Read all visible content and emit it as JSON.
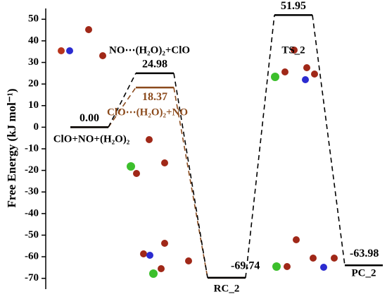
{
  "chart_data": {
    "type": "energy",
    "ylabel": "Free Energy (kJ mol⁻¹)",
    "ylim": [
      -75,
      55
    ],
    "yticks": [
      50,
      40,
      30,
      20,
      10,
      0,
      -10,
      -20,
      -30,
      -40,
      -50,
      -60,
      -70
    ],
    "categories": [
      "ClO+NO+(H₂O)₂",
      null,
      "RC_2",
      "TS_2",
      "PC_2"
    ],
    "series": [
      {
        "name": "NO⋯(H₂O)₂+ClO",
        "color": "#000000",
        "values": [
          0,
          24.98,
          -69.74,
          51.95,
          -63.98
        ],
        "value_labels": [
          "0.00",
          "24.98",
          "-69.74",
          "51.95",
          "-63.98"
        ]
      },
      {
        "name": "ClO⋯(H₂O)₂+NO",
        "color": "#8b4a1c",
        "values": [
          0,
          18.37,
          -69.74,
          null,
          null
        ],
        "value_labels": [
          null,
          "18.37",
          null,
          null,
          null
        ]
      }
    ]
  }
}
